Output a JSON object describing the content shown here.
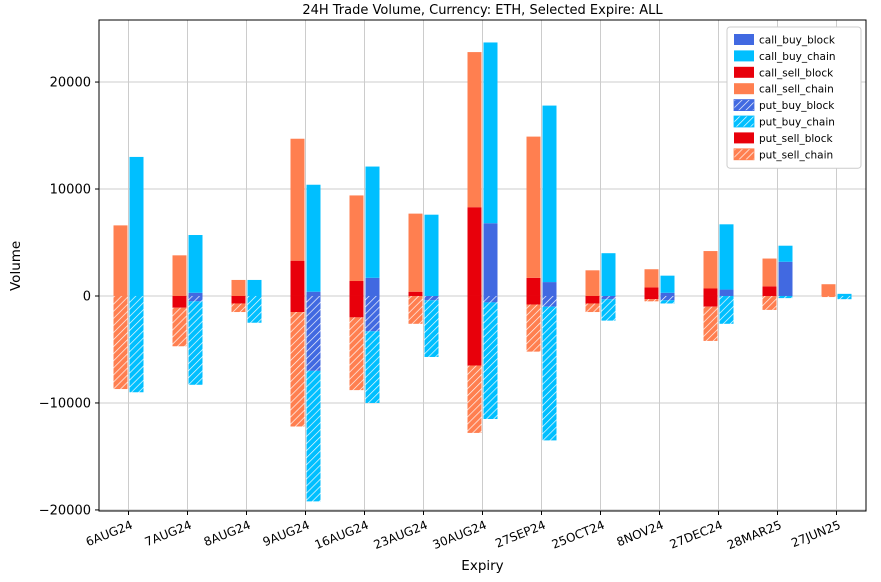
{
  "chart_data": {
    "type": "bar",
    "title": "24H Trade Volume, Currency: ETH, Selected Expire: ALL",
    "xlabel": "Expiry",
    "ylabel": "Volume",
    "stacked": true,
    "grid": true,
    "legend_position": "upper right",
    "ylim": [
      -20100,
      25800
    ],
    "yticks": [
      -20000,
      -10000,
      0,
      10000,
      20000
    ],
    "ytick_labels": [
      "−20000",
      "−10000",
      "0",
      "10000",
      "20000"
    ],
    "categories": [
      "6AUG24",
      "7AUG24",
      "8AUG24",
      "9AUG24",
      "16AUG24",
      "23AUG24",
      "30AUG24",
      "27SEP24",
      "25OCT24",
      "8NOV24",
      "27DEC24",
      "28MAR25",
      "27JUN25"
    ],
    "colors": {
      "block_blue": "#4169e1",
      "chain_cyan": "#00bfff",
      "block_red": "#e8000b",
      "chain_coral": "#ff7f50",
      "grid": "#cccccc",
      "frame": "#000000"
    },
    "series": [
      {
        "name": "call_buy_block",
        "color": "#4169e1",
        "hatch": false,
        "bar": "buy",
        "values": [
          0,
          300,
          0,
          400,
          1700,
          0,
          6800,
          1300,
          0,
          300,
          600,
          3200,
          0
        ]
      },
      {
        "name": "call_buy_chain",
        "color": "#00bfff",
        "hatch": false,
        "bar": "buy",
        "values": [
          13000,
          5400,
          1500,
          10000,
          10400,
          7600,
          16900,
          16500,
          4000,
          1600,
          6100,
          1500,
          200
        ]
      },
      {
        "name": "call_sell_block",
        "color": "#e8000b",
        "hatch": false,
        "bar": "sell",
        "values": [
          0,
          0,
          0,
          3300,
          1400,
          400,
          8300,
          1700,
          0,
          800,
          700,
          900,
          0
        ]
      },
      {
        "name": "call_sell_chain",
        "color": "#ff7f50",
        "hatch": false,
        "bar": "sell",
        "values": [
          6600,
          3800,
          1500,
          11400,
          8000,
          7300,
          14500,
          13200,
          2400,
          1700,
          3500,
          2600,
          1100
        ]
      },
      {
        "name": "put_buy_block",
        "color": "#4169e1",
        "hatch": true,
        "bar": "buy",
        "values": [
          0,
          -500,
          0,
          -7000,
          -3300,
          -400,
          -600,
          -1000,
          -300,
          -400,
          0,
          0,
          0
        ]
      },
      {
        "name": "put_buy_chain",
        "color": "#00bfff",
        "hatch": true,
        "bar": "buy",
        "values": [
          -9000,
          -7800,
          -2500,
          -12200,
          -6700,
          -5300,
          -10900,
          -12500,
          -2000,
          -300,
          -2600,
          -200,
          -300
        ]
      },
      {
        "name": "put_sell_block",
        "color": "#e8000b",
        "hatch": false,
        "bar": "sell",
        "values": [
          0,
          -1100,
          -700,
          -1500,
          -2000,
          0,
          -6500,
          -800,
          -700,
          -300,
          -1000,
          0,
          0
        ]
      },
      {
        "name": "put_sell_chain",
        "color": "#ff7f50",
        "hatch": true,
        "bar": "sell",
        "values": [
          -8700,
          -3600,
          -800,
          -10700,
          -6800,
          -2600,
          -6300,
          -4400,
          -800,
          -200,
          -3200,
          -1300,
          -100
        ]
      }
    ]
  }
}
